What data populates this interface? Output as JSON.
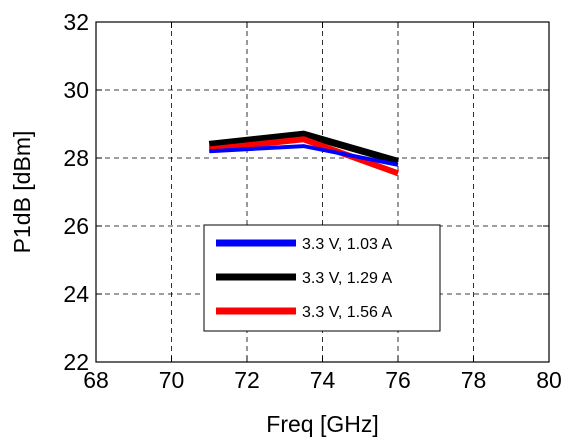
{
  "chart_data": {
    "type": "line",
    "title": "",
    "xlabel": "Freq [GHz]",
    "ylabel": "P1dB [dBm]",
    "xlim": [
      68,
      80
    ],
    "ylim": [
      22,
      32
    ],
    "xticks": [
      68,
      70,
      72,
      74,
      76,
      78,
      80
    ],
    "yticks": [
      22,
      24,
      26,
      28,
      30,
      32
    ],
    "x_tick_labels": [
      "68",
      "70",
      "72",
      "74",
      "76",
      "78",
      "80"
    ],
    "y_tick_labels": [
      "22",
      "24",
      "26",
      "28",
      "30",
      "32"
    ],
    "grid": true,
    "grid_style": "dashed",
    "legend_placement": "lower-center",
    "series": [
      {
        "name": "3.3 V, 1.03 A",
        "color": "#0000ff",
        "x": [
          71,
          73.5,
          76
        ],
        "y": [
          28.2,
          28.35,
          27.8
        ]
      },
      {
        "name": "3.3 V, 1.29 A",
        "color": "#000000",
        "x": [
          71,
          73.5,
          76
        ],
        "y": [
          28.4,
          28.7,
          27.9
        ]
      },
      {
        "name": "3.3 V, 1.56 A",
        "color": "#ff0000",
        "x": [
          71,
          73.5,
          76
        ],
        "y": [
          28.25,
          28.55,
          27.55
        ]
      }
    ]
  }
}
